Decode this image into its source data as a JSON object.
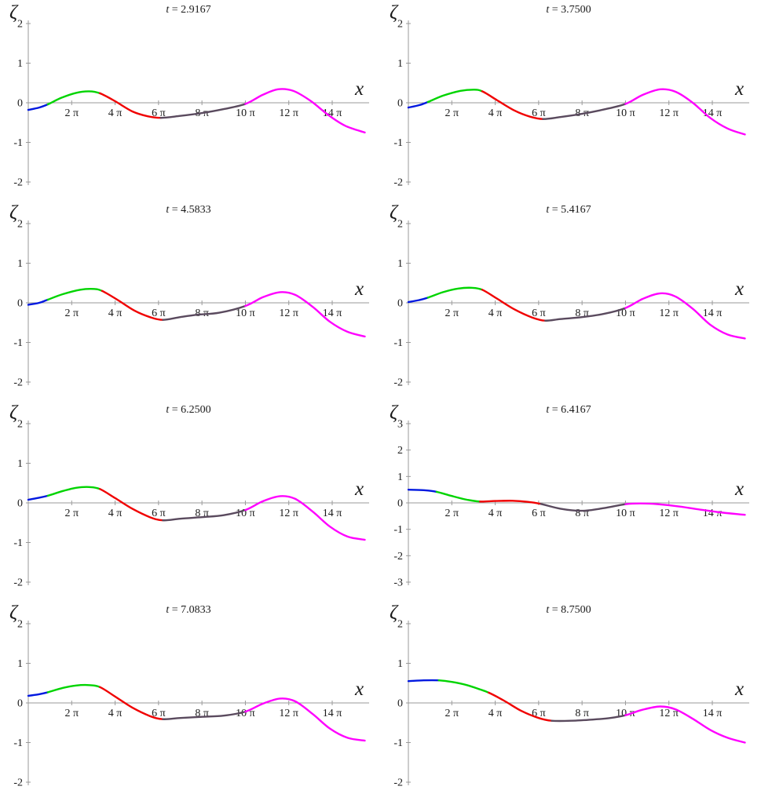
{
  "figure": {
    "description": "Eight panels of wave elevation profiles at successive times",
    "ylabel": "ζ",
    "xlabel": "x",
    "pi": "π",
    "axis_color": "#9a9a9a",
    "text_color": "#1a1a1a",
    "colors": {
      "blue": "#0018e0",
      "green": "#00d400",
      "red": "#f00000",
      "dark": "#5a4a5e",
      "magenta": "#ff00ff"
    }
  },
  "chart_data": [
    {
      "type": "line",
      "title": "t = 2.9167",
      "t_value": "2.9167",
      "xlabel": "x",
      "ylabel": "ζ",
      "xlim_pi": [
        0,
        15.7
      ],
      "ylim": [
        -2,
        2
      ],
      "yticks": [
        2,
        1,
        0,
        -1,
        -2
      ],
      "xticks_pi": [
        2,
        4,
        6,
        8,
        10,
        12,
        14
      ],
      "legend": false,
      "grid": false,
      "segments": [
        {
          "c": "blue",
          "p": [
            [
              0,
              -0.18
            ],
            [
              0.5,
              -0.12
            ],
            [
              0.9,
              -0.04
            ]
          ]
        },
        {
          "c": "green",
          "p": [
            [
              1.5,
              0.12
            ],
            [
              2.2,
              0.25
            ],
            [
              2.8,
              0.29
            ],
            [
              3.3,
              0.24
            ]
          ]
        },
        {
          "c": "red",
          "p": [
            [
              4.0,
              0.04
            ],
            [
              4.8,
              -0.22
            ],
            [
              5.5,
              -0.34
            ],
            [
              6.1,
              -0.38
            ]
          ]
        },
        {
          "c": "dark",
          "p": [
            [
              7,
              -0.33
            ],
            [
              8,
              -0.26
            ],
            [
              9,
              -0.16
            ],
            [
              10,
              -0.03
            ]
          ]
        },
        {
          "c": "magenta",
          "p": [
            [
              10.8,
              0.2
            ],
            [
              11.5,
              0.34
            ],
            [
              12.2,
              0.3
            ],
            [
              13,
              0.05
            ],
            [
              13.8,
              -0.3
            ],
            [
              14.6,
              -0.58
            ],
            [
              15.5,
              -0.75
            ]
          ]
        }
      ]
    },
    {
      "type": "line",
      "title": "t = 3.7500",
      "t_value": "3.7500",
      "xlabel": "x",
      "ylabel": "ζ",
      "xlim_pi": [
        0,
        15.7
      ],
      "ylim": [
        -2,
        2
      ],
      "yticks": [
        2,
        1,
        0,
        -1,
        -2
      ],
      "xticks_pi": [
        2,
        4,
        6,
        8,
        10,
        12,
        14
      ],
      "legend": false,
      "grid": false,
      "segments": [
        {
          "c": "blue",
          "p": [
            [
              0,
              -0.12
            ],
            [
              0.5,
              -0.06
            ],
            [
              0.9,
              0.02
            ]
          ]
        },
        {
          "c": "green",
          "p": [
            [
              1.6,
              0.18
            ],
            [
              2.4,
              0.3
            ],
            [
              3.0,
              0.33
            ],
            [
              3.4,
              0.29
            ]
          ]
        },
        {
          "c": "red",
          "p": [
            [
              4.1,
              0.06
            ],
            [
              4.9,
              -0.2
            ],
            [
              5.6,
              -0.35
            ],
            [
              6.2,
              -0.41
            ]
          ]
        },
        {
          "c": "dark",
          "p": [
            [
              7,
              -0.36
            ],
            [
              8,
              -0.28
            ],
            [
              9,
              -0.17
            ],
            [
              10,
              -0.03
            ]
          ]
        },
        {
          "c": "magenta",
          "p": [
            [
              10.8,
              0.2
            ],
            [
              11.6,
              0.34
            ],
            [
              12.3,
              0.28
            ],
            [
              13.1,
              0.0
            ],
            [
              13.9,
              -0.38
            ],
            [
              14.7,
              -0.65
            ],
            [
              15.5,
              -0.8
            ]
          ]
        }
      ]
    },
    {
      "type": "line",
      "title": "t = 4.5833",
      "t_value": "4.5833",
      "xlabel": "x",
      "ylabel": "ζ",
      "xlim_pi": [
        0,
        15.7
      ],
      "ylim": [
        -2,
        2
      ],
      "yticks": [
        2,
        1,
        0,
        -1,
        -2
      ],
      "xticks_pi": [
        2,
        4,
        6,
        8,
        10,
        12,
        14
      ],
      "legend": false,
      "grid": false,
      "segments": [
        {
          "c": "blue",
          "p": [
            [
              0,
              -0.05
            ],
            [
              0.5,
              0.0
            ],
            [
              0.9,
              0.08
            ]
          ]
        },
        {
          "c": "green",
          "p": [
            [
              1.6,
              0.22
            ],
            [
              2.4,
              0.33
            ],
            [
              3.0,
              0.35
            ],
            [
              3.4,
              0.3
            ]
          ]
        },
        {
          "c": "red",
          "p": [
            [
              4.1,
              0.08
            ],
            [
              4.9,
              -0.2
            ],
            [
              5.6,
              -0.36
            ],
            [
              6.2,
              -0.43
            ]
          ]
        },
        {
          "c": "dark",
          "p": [
            [
              7,
              -0.36
            ],
            [
              7.8,
              -0.3
            ],
            [
              8.8,
              -0.25
            ],
            [
              10,
              -0.08
            ]
          ]
        },
        {
          "c": "magenta",
          "p": [
            [
              10.8,
              0.14
            ],
            [
              11.6,
              0.27
            ],
            [
              12.3,
              0.2
            ],
            [
              13.1,
              -0.1
            ],
            [
              13.9,
              -0.48
            ],
            [
              14.7,
              -0.73
            ],
            [
              15.5,
              -0.85
            ]
          ]
        }
      ]
    },
    {
      "type": "line",
      "title": "t = 5.4167",
      "t_value": "5.4167",
      "xlabel": "x",
      "ylabel": "ζ",
      "xlim_pi": [
        0,
        15.7
      ],
      "ylim": [
        -2,
        2
      ],
      "yticks": [
        2,
        1,
        0,
        -1,
        -2
      ],
      "xticks_pi": [
        2,
        4,
        6,
        8,
        10,
        12,
        14
      ],
      "legend": false,
      "grid": false,
      "segments": [
        {
          "c": "blue",
          "p": [
            [
              0,
              0.02
            ],
            [
              0.5,
              0.07
            ],
            [
              0.9,
              0.13
            ]
          ]
        },
        {
          "c": "green",
          "p": [
            [
              1.6,
              0.27
            ],
            [
              2.3,
              0.36
            ],
            [
              2.9,
              0.38
            ],
            [
              3.4,
              0.33
            ]
          ]
        },
        {
          "c": "red",
          "p": [
            [
              4.1,
              0.1
            ],
            [
              4.9,
              -0.17
            ],
            [
              5.7,
              -0.37
            ],
            [
              6.3,
              -0.45
            ]
          ]
        },
        {
          "c": "dark",
          "p": [
            [
              7,
              -0.41
            ],
            [
              8,
              -0.36
            ],
            [
              9,
              -0.28
            ],
            [
              10,
              -0.13
            ]
          ]
        },
        {
          "c": "magenta",
          "p": [
            [
              10.8,
              0.1
            ],
            [
              11.6,
              0.24
            ],
            [
              12.3,
              0.16
            ],
            [
              13.1,
              -0.15
            ],
            [
              13.9,
              -0.55
            ],
            [
              14.7,
              -0.8
            ],
            [
              15.5,
              -0.9
            ]
          ]
        }
      ]
    },
    {
      "type": "line",
      "title": "t = 6.2500",
      "t_value": "6.2500",
      "xlabel": "x",
      "ylabel": "ζ",
      "xlim_pi": [
        0,
        15.7
      ],
      "ylim": [
        -2,
        2
      ],
      "yticks": [
        2,
        1,
        0,
        -1,
        -2
      ],
      "xticks_pi": [
        2,
        4,
        6,
        8,
        10,
        12,
        14
      ],
      "legend": false,
      "grid": false,
      "segments": [
        {
          "c": "blue",
          "p": [
            [
              0,
              0.08
            ],
            [
              0.5,
              0.13
            ],
            [
              0.9,
              0.18
            ]
          ]
        },
        {
          "c": "green",
          "p": [
            [
              1.6,
              0.3
            ],
            [
              2.2,
              0.38
            ],
            [
              2.8,
              0.4
            ],
            [
              3.3,
              0.35
            ]
          ]
        },
        {
          "c": "red",
          "p": [
            [
              4.0,
              0.12
            ],
            [
              4.8,
              -0.15
            ],
            [
              5.6,
              -0.36
            ],
            [
              6.2,
              -0.44
            ]
          ]
        },
        {
          "c": "dark",
          "p": [
            [
              7,
              -0.4
            ],
            [
              8,
              -0.36
            ],
            [
              9,
              -0.31
            ],
            [
              10,
              -0.18
            ]
          ]
        },
        {
          "c": "magenta",
          "p": [
            [
              10.8,
              0.04
            ],
            [
              11.6,
              0.17
            ],
            [
              12.3,
              0.1
            ],
            [
              13.1,
              -0.22
            ],
            [
              13.9,
              -0.6
            ],
            [
              14.7,
              -0.85
            ],
            [
              15.5,
              -0.93
            ]
          ]
        }
      ]
    },
    {
      "type": "line",
      "title": "t = 6.4167",
      "t_value": "6.4167",
      "xlabel": "x",
      "ylabel": "ζ",
      "xlim_pi": [
        0,
        15.7
      ],
      "ylim": [
        -3,
        3
      ],
      "yticks": [
        3,
        2,
        1,
        0,
        -1,
        -2,
        -3
      ],
      "xticks_pi": [
        2,
        4,
        6,
        8,
        10,
        12,
        14
      ],
      "legend": false,
      "grid": false,
      "segments": [
        {
          "c": "blue",
          "p": [
            [
              0,
              0.5
            ],
            [
              0.7,
              0.48
            ],
            [
              1.3,
              0.42
            ]
          ]
        },
        {
          "c": "green",
          "p": [
            [
              2,
              0.26
            ],
            [
              2.7,
              0.12
            ],
            [
              3.3,
              0.05
            ]
          ]
        },
        {
          "c": "red",
          "p": [
            [
              4,
              0.07
            ],
            [
              4.8,
              0.08
            ],
            [
              5.5,
              0.04
            ],
            [
              6.1,
              -0.04
            ]
          ]
        },
        {
          "c": "dark",
          "p": [
            [
              7,
              -0.22
            ],
            [
              8,
              -0.3
            ],
            [
              9,
              -0.2
            ],
            [
              10,
              -0.05
            ]
          ]
        },
        {
          "c": "magenta",
          "p": [
            [
              10.7,
              -0.02
            ],
            [
              11.5,
              -0.05
            ],
            [
              12.5,
              -0.14
            ],
            [
              13.5,
              -0.26
            ],
            [
              14.5,
              -0.37
            ],
            [
              15.5,
              -0.45
            ]
          ]
        }
      ]
    },
    {
      "type": "line",
      "title": "t = 7.0833",
      "t_value": "7.0833",
      "xlabel": "x",
      "ylabel": "ζ",
      "xlim_pi": [
        0,
        15.7
      ],
      "ylim": [
        -2,
        2
      ],
      "yticks": [
        2,
        1,
        0,
        -1,
        -2
      ],
      "xticks_pi": [
        2,
        4,
        6,
        8,
        10,
        12,
        14
      ],
      "legend": false,
      "grid": false,
      "segments": [
        {
          "c": "blue",
          "p": [
            [
              0,
              0.18
            ],
            [
              0.5,
              0.22
            ],
            [
              0.9,
              0.27
            ]
          ]
        },
        {
          "c": "green",
          "p": [
            [
              1.6,
              0.38
            ],
            [
              2.2,
              0.44
            ],
            [
              2.8,
              0.45
            ],
            [
              3.3,
              0.4
            ]
          ]
        },
        {
          "c": "red",
          "p": [
            [
              4.0,
              0.16
            ],
            [
              4.8,
              -0.12
            ],
            [
              5.6,
              -0.33
            ],
            [
              6.2,
              -0.41
            ]
          ]
        },
        {
          "c": "dark",
          "p": [
            [
              7,
              -0.38
            ],
            [
              8,
              -0.35
            ],
            [
              9,
              -0.32
            ],
            [
              10,
              -0.22
            ]
          ]
        },
        {
          "c": "magenta",
          "p": [
            [
              10.8,
              -0.02
            ],
            [
              11.6,
              0.11
            ],
            [
              12.3,
              0.04
            ],
            [
              13.1,
              -0.28
            ],
            [
              13.9,
              -0.65
            ],
            [
              14.7,
              -0.88
            ],
            [
              15.5,
              -0.95
            ]
          ]
        }
      ]
    },
    {
      "type": "line",
      "title": "t = 8.7500",
      "t_value": "8.7500",
      "xlabel": "x",
      "ylabel": "ζ",
      "xlim_pi": [
        0,
        15.7
      ],
      "ylim": [
        -2,
        2
      ],
      "yticks": [
        2,
        1,
        0,
        -1,
        -2
      ],
      "xticks_pi": [
        2,
        4,
        6,
        8,
        10,
        12,
        14
      ],
      "legend": false,
      "grid": false,
      "segments": [
        {
          "c": "blue",
          "p": [
            [
              0,
              0.55
            ],
            [
              0.7,
              0.57
            ],
            [
              1.4,
              0.57
            ]
          ]
        },
        {
          "c": "green",
          "p": [
            [
              2.0,
              0.53
            ],
            [
              2.7,
              0.45
            ],
            [
              3.3,
              0.34
            ],
            [
              3.7,
              0.26
            ]
          ]
        },
        {
          "c": "red",
          "p": [
            [
              4.4,
              0.06
            ],
            [
              5.2,
              -0.2
            ],
            [
              6.0,
              -0.38
            ],
            [
              6.6,
              -0.45
            ]
          ]
        },
        {
          "c": "dark",
          "p": [
            [
              7.5,
              -0.45
            ],
            [
              8.5,
              -0.42
            ],
            [
              9.3,
              -0.38
            ],
            [
              10,
              -0.31
            ]
          ]
        },
        {
          "c": "magenta",
          "p": [
            [
              10.8,
              -0.17
            ],
            [
              11.6,
              -0.09
            ],
            [
              12.3,
              -0.16
            ],
            [
              13.1,
              -0.4
            ],
            [
              13.9,
              -0.68
            ],
            [
              14.7,
              -0.88
            ],
            [
              15.5,
              -1.0
            ]
          ]
        }
      ]
    }
  ]
}
